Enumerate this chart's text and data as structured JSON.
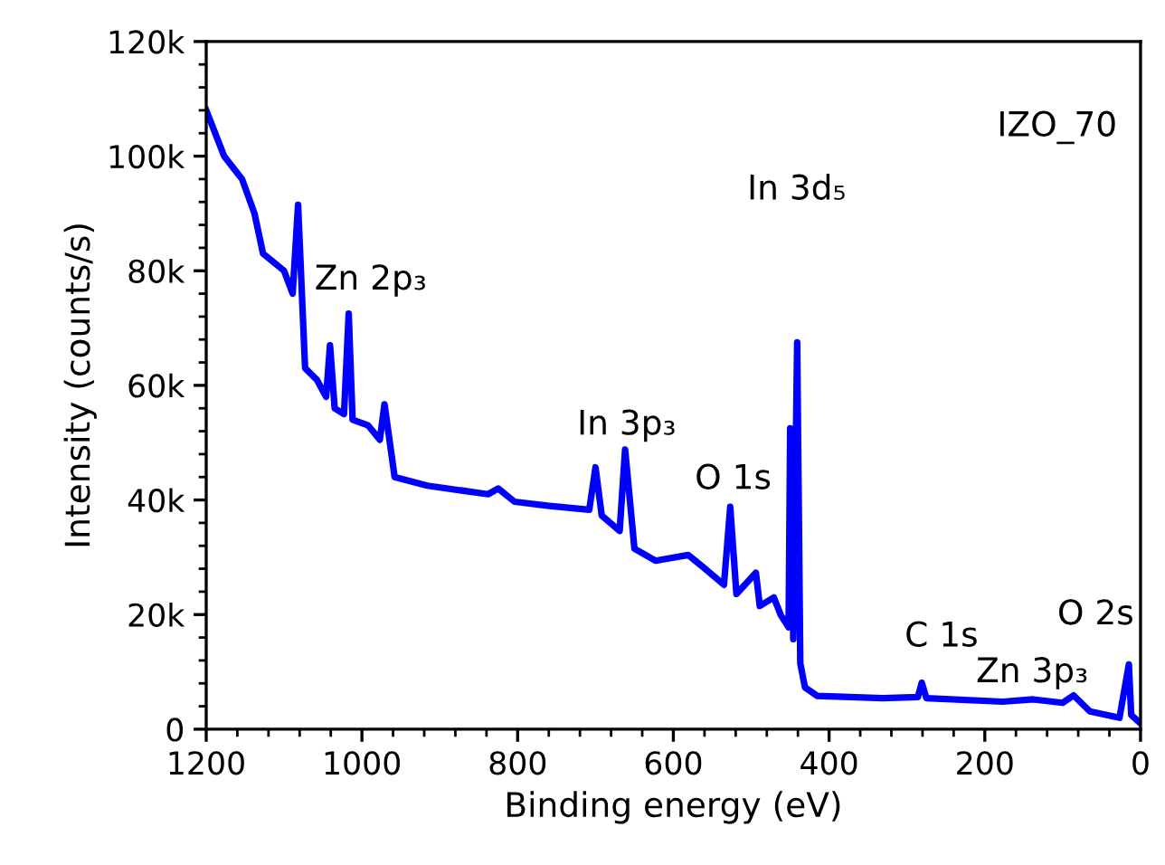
{
  "chart_data": {
    "type": "line",
    "xlabel": "Binding energy (eV)",
    "ylabel": "Intensity (counts/s)",
    "x": [
      1200,
      1177,
      1154,
      1138,
      1127,
      1100,
      1089,
      1082,
      1073,
      1058,
      1046,
      1041,
      1035,
      1023,
      1017,
      1012,
      992,
      977,
      971,
      958,
      916,
      838,
      825,
      804,
      762,
      708,
      700,
      692,
      669,
      662,
      650,
      623,
      581,
      562,
      535,
      527,
      519,
      494,
      489,
      471,
      462,
      452,
      450,
      446,
      441,
      437,
      431,
      415,
      331,
      286,
      281,
      275,
      177,
      138,
      100,
      86,
      65,
      27,
      15,
      12,
      0
    ],
    "series": [
      {
        "color": "#0000ff",
        "values": [
          108,
          100,
          96,
          90,
          83,
          80,
          76,
          91.5,
          63,
          61,
          58,
          67,
          56,
          55,
          72.5,
          54,
          53,
          50.5,
          56.7,
          44,
          42.5,
          41,
          42,
          39.7,
          39,
          38.3,
          45.7,
          37.3,
          34.6,
          48.8,
          31.5,
          29.4,
          30.4,
          28.3,
          25.2,
          38.8,
          23.6,
          27.3,
          21.5,
          23,
          19.9,
          17.8,
          52.5,
          15.7,
          67.5,
          11.5,
          7.3,
          5.8,
          5.4,
          5.6,
          8.1,
          5.4,
          4.8,
          5.2,
          4.6,
          5.9,
          3.1,
          2,
          11.3,
          2.5,
          1
        ]
      }
    ],
    "xlim": [
      1200,
      0
    ],
    "xticks": [
      1200,
      1000,
      800,
      600,
      400,
      200,
      0
    ],
    "ylim": [
      0,
      120
    ],
    "yticks": [
      {
        "value": 0,
        "label": "0"
      },
      {
        "value": 20,
        "label": "20k"
      },
      {
        "value": 40,
        "label": "40k"
      },
      {
        "value": 60,
        "label": "60k"
      },
      {
        "value": 80,
        "label": "80k"
      },
      {
        "value": 100,
        "label": "100k"
      },
      {
        "value": 120,
        "label": "120k"
      }
    ],
    "grid": false,
    "legend": false,
    "marker": "none",
    "line_style": "solid",
    "annotations": [
      "IZO_70",
      "Zn 2p₃",
      "In 3p₃",
      "O 1s",
      "In 3d₅",
      "C 1s",
      "Zn 3p₃",
      "O 2s"
    ]
  }
}
